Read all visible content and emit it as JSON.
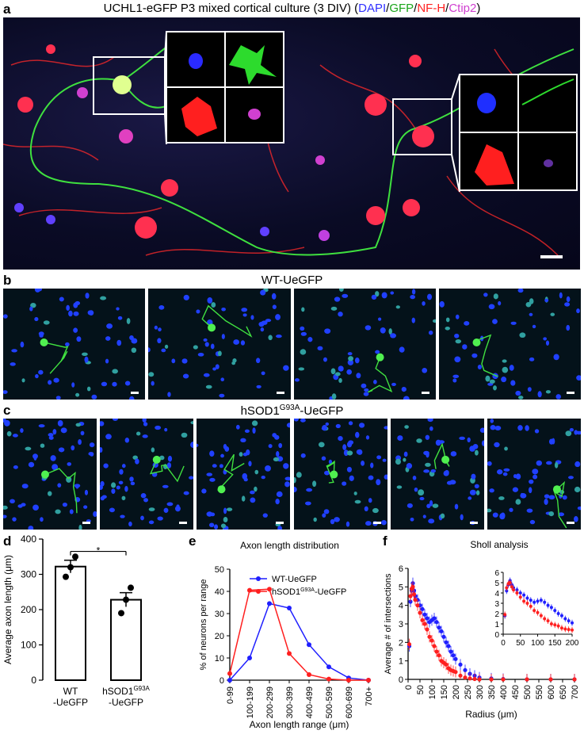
{
  "figure": {
    "panel_a": {
      "letter": "a",
      "title_prefix": "UCHL1-eGFP P3 mixed cortical culture (3 DIV) (",
      "title_dapi": "DAPI",
      "title_gfp": "GFP",
      "title_nfh": "NF-H",
      "title_ctip2": "Ctip2",
      "title_suffix": ")",
      "colors": {
        "dapi": "#3030ff",
        "gfp": "#1aa51a",
        "nfh": "#ff2020",
        "ctip2": "#d040d0"
      }
    },
    "panel_b": {
      "letter": "b",
      "title": "WT-UeGFP"
    },
    "panel_c": {
      "letter": "c",
      "title_pre": "hSOD1",
      "title_sup": "G93A",
      "title_post": "-UeGFP"
    },
    "panel_d": {
      "letter": "d"
    },
    "panel_e": {
      "letter": "e"
    },
    "panel_f": {
      "letter": "f"
    }
  },
  "chart_data": [
    {
      "id": "d",
      "type": "bar",
      "ylabel": "Average axon length (μm)",
      "ylim": [
        0,
        400
      ],
      "yticks": [
        0,
        100,
        200,
        300,
        400
      ],
      "categories": [
        "WT\n-UeGFP",
        "hSOD1G93A\n-UeGFP"
      ],
      "category_lines": [
        [
          "WT",
          "-UeGFP"
        ],
        [
          "hSOD1",
          "G93A",
          "-UeGFP"
        ]
      ],
      "values": [
        322,
        228
      ],
      "sem": [
        18,
        20
      ],
      "points": [
        [
          293,
          320,
          350
        ],
        [
          190,
          228,
          262
        ]
      ],
      "significance": "*"
    },
    {
      "id": "e",
      "type": "line",
      "title": "Axon length distribution",
      "xlabel": "Axon length range (μm)",
      "ylabel": "% of neurons per range",
      "ylim": [
        0,
        50
      ],
      "yticks": [
        0,
        10,
        20,
        30,
        40,
        50
      ],
      "categories": [
        "0-99",
        "100-199",
        "200-299",
        "300-399",
        "400-499",
        "500-599",
        "600-699",
        "700+"
      ],
      "legend_position": "top-right",
      "series": [
        {
          "name": "WT-UeGFP",
          "color": "#1f1fff",
          "values": [
            0,
            10,
            34.5,
            32.5,
            16,
            6,
            1,
            0
          ]
        },
        {
          "name_pre": "hSOD1",
          "name_sup": "G93A",
          "name_post": "-UeGFP",
          "color": "#ff1f1f",
          "values": [
            3,
            40.5,
            41,
            12,
            2.5,
            0.5,
            0,
            0
          ]
        }
      ]
    },
    {
      "id": "f",
      "type": "scatter",
      "title": "Sholl analysis",
      "xlabel": "Radius (μm)",
      "ylabel": "Average # of intersections",
      "xlim": [
        0,
        700
      ],
      "ylim": [
        0,
        6
      ],
      "xticks": [
        0,
        50,
        100,
        150,
        200,
        250,
        300,
        350,
        400,
        450,
        500,
        550,
        600,
        650,
        700
      ],
      "yticks": [
        0,
        1,
        2,
        3,
        4,
        5,
        6
      ],
      "inset": {
        "xlim": [
          0,
          200
        ],
        "ylim": [
          0,
          6
        ],
        "xticks": [
          0,
          50,
          100,
          150,
          200
        ],
        "yticks": [
          0,
          1,
          2,
          3,
          4,
          5,
          6
        ]
      },
      "series": [
        {
          "name": "WT-UeGFP",
          "color": "#1f1fff",
          "x": [
            5,
            10,
            15,
            20,
            25,
            30,
            40,
            50,
            60,
            70,
            80,
            90,
            100,
            110,
            120,
            130,
            140,
            150,
            160,
            170,
            180,
            190,
            200,
            220,
            240,
            260,
            280,
            300,
            350,
            400,
            500,
            600,
            700
          ],
          "y": [
            1.8,
            4.2,
            4.8,
            5.2,
            4.8,
            4.5,
            4.3,
            4.0,
            3.8,
            3.5,
            3.3,
            3.1,
            3.2,
            3.3,
            3.1,
            2.8,
            2.6,
            2.3,
            2.0,
            1.8,
            1.5,
            1.3,
            1.1,
            0.8,
            0.5,
            0.3,
            0.2,
            0.1,
            0.05,
            0.02,
            0,
            0,
            0
          ]
        },
        {
          "name": "hSOD1G93A-UeGFP",
          "color": "#ff1f1f",
          "x": [
            5,
            10,
            15,
            20,
            25,
            30,
            40,
            50,
            60,
            70,
            80,
            90,
            100,
            110,
            120,
            130,
            140,
            150,
            160,
            170,
            180,
            190,
            200,
            220,
            240,
            260,
            280,
            300,
            350,
            400,
            500,
            600,
            700
          ],
          "y": [
            1.9,
            4.5,
            4.9,
            5.0,
            4.6,
            4.3,
            4.0,
            3.6,
            3.2,
            3.0,
            2.7,
            2.3,
            2.1,
            1.8,
            1.5,
            1.3,
            1.0,
            0.9,
            0.8,
            0.6,
            0.5,
            0.45,
            0.4,
            0.2,
            0.1,
            0.05,
            0.02,
            0,
            0,
            0,
            0,
            0,
            0
          ]
        }
      ]
    }
  ]
}
